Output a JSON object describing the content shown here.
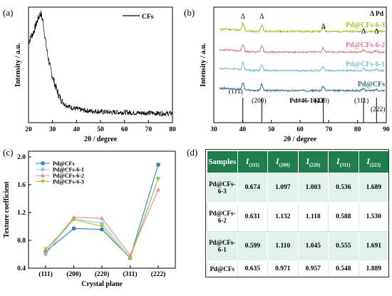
{
  "labels": {
    "a": "(a)",
    "b": "(b)",
    "c": "(c)",
    "d": "(d)"
  },
  "chart_data": [
    {
      "id": "a",
      "type": "line",
      "xlabel": "2θ / degree",
      "ylabel": "Intensity / a.u.",
      "xlim": [
        20,
        80
      ],
      "xticks": [
        20,
        30,
        40,
        50,
        60,
        70,
        80
      ],
      "legend": "CFs",
      "series": [
        {
          "name": "CFs",
          "x": [
            20,
            21,
            22,
            23,
            24,
            25,
            26,
            27,
            28,
            29,
            30,
            31,
            32,
            33,
            34,
            35,
            36,
            38,
            40,
            42,
            44,
            46,
            48,
            50,
            55,
            60,
            65,
            70,
            75,
            80
          ],
          "y": [
            0.7,
            0.74,
            0.78,
            0.84,
            0.9,
            0.95,
            0.88,
            0.72,
            0.58,
            0.48,
            0.4,
            0.33,
            0.27,
            0.22,
            0.19,
            0.16,
            0.15,
            0.13,
            0.12,
            0.11,
            0.105,
            0.1,
            0.1,
            0.095,
            0.09,
            0.09,
            0.085,
            0.085,
            0.08,
            0.08
          ]
        }
      ]
    },
    {
      "id": "b",
      "type": "line",
      "xlabel": "2θ / degree",
      "ylabel": "Intensity / a.u.",
      "xlim": [
        30,
        90
      ],
      "xticks": [
        30,
        40,
        50,
        60,
        70,
        80,
        90
      ],
      "legend": "Δ Pd",
      "reference": "Pd#46-1043",
      "reference_peaks": [
        {
          "x": 40.1,
          "label": "(111)"
        },
        {
          "x": 46.7,
          "label": "(200)"
        },
        {
          "x": 68.1,
          "label": "(220)"
        },
        {
          "x": 82.1,
          "label": "(311)"
        },
        {
          "x": 86.6,
          "label": "(222)"
        }
      ],
      "peak_marker": "Δ",
      "peaks": [
        40.1,
        46.7,
        68.1,
        82.1,
        86.6
      ],
      "series": [
        {
          "name": "Pd@CFs-6-3",
          "color": "#a6bd2d",
          "offset": 3
        },
        {
          "name": "Pd@CFs-6-2",
          "color": "#d97a92",
          "offset": 2
        },
        {
          "name": "Pd@CFs-6-1",
          "color": "#7cc2cf",
          "offset": 1
        },
        {
          "name": "Pd@CFs",
          "color": "#3d6f86",
          "offset": 0
        }
      ]
    },
    {
      "id": "c",
      "type": "line",
      "xlabel": "Crystal plane",
      "ylabel": "Texture coefficient",
      "ylim": [
        0.4,
        2.0
      ],
      "yticks": [
        0.4,
        0.8,
        1.2,
        1.6,
        2.0
      ],
      "categories": [
        "(111)",
        "(200)",
        "(220)",
        "(311)",
        "(222)"
      ],
      "series": [
        {
          "name": "Pd@CFs",
          "color": "#2e7fbd",
          "marker": "square",
          "values": [
            0.635,
            0.971,
            0.957,
            0.548,
            1.889
          ]
        },
        {
          "name": "Pd@CFs-6-1",
          "color": "#8ecde0",
          "marker": "circle",
          "values": [
            0.599,
            1.11,
            1.045,
            0.555,
            1.691
          ]
        },
        {
          "name": "Pd@CFs-6-2",
          "color": "#e8889f",
          "marker": "triangle",
          "values": [
            0.631,
            1.132,
            1.118,
            0.588,
            1.53
          ]
        },
        {
          "name": "Pd@CFs-6-3",
          "color": "#a8c234",
          "marker": "triangle-down",
          "values": [
            0.674,
            1.097,
            1.003,
            0.536,
            1.689
          ]
        }
      ]
    },
    {
      "id": "d",
      "type": "table",
      "columns": [
        "Samples",
        "I(111)",
        "I(200)",
        "I(220)",
        "I(311)",
        "I(222)"
      ],
      "header": [
        {
          "main": "Samples",
          "sub": ""
        },
        {
          "main": "I",
          "sub": "(111)"
        },
        {
          "main": "I",
          "sub": "(200)"
        },
        {
          "main": "I",
          "sub": "(220)"
        },
        {
          "main": "I",
          "sub": "(311)"
        },
        {
          "main": "I",
          "sub": "(222)"
        }
      ],
      "rows": [
        [
          "Pd@CFs-6-3",
          "0.674",
          "1.097",
          "1.003",
          "0.536",
          "1.689"
        ],
        [
          "Pd@CFs-6-2",
          "0.631",
          "1.132",
          "1.118",
          "0.588",
          "1.530"
        ],
        [
          "Pd@CFs-6-1",
          "0.599",
          "1.110",
          "1.045",
          "0.555",
          "1.691"
        ],
        [
          "Pd@CFs",
          "0.635",
          "0.971",
          "0.957",
          "0.548",
          "1.889"
        ]
      ]
    }
  ]
}
